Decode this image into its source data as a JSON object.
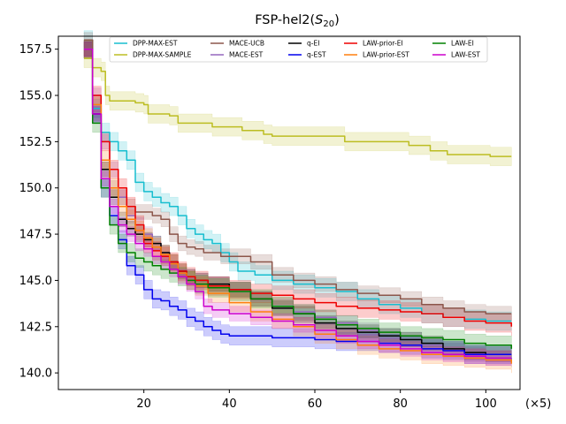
{
  "chart_data": {
    "type": "line",
    "title": "FSP-hel2(S20)",
    "title_main": "FSP-hel2(",
    "title_var": "S",
    "title_sub": "20",
    "title_close": ")",
    "xlabel": "",
    "ylabel": "",
    "x_unit_note": "(×5)",
    "xlim": [
      0,
      108
    ],
    "ylim": [
      139.1,
      158.2
    ],
    "xticks": [
      20,
      40,
      60,
      80,
      100
    ],
    "yticks": [
      140.0,
      142.5,
      145.0,
      147.5,
      150.0,
      152.5,
      155.0,
      157.5
    ],
    "xtick_labels": [
      "20",
      "40",
      "60",
      "80",
      "100"
    ],
    "ytick_labels": [
      "140.0",
      "142.5",
      "145.0",
      "147.5",
      "150.0",
      "152.5",
      "155.0",
      "157.5"
    ],
    "legend_position": "top-center",
    "series": [
      {
        "name": "DPP-MAX-EST",
        "color": "#17becf",
        "band": 0.5,
        "points": [
          [
            6,
            158.0
          ],
          [
            8,
            154.3
          ],
          [
            10,
            153.0
          ],
          [
            12,
            152.5
          ],
          [
            14,
            152.0
          ],
          [
            16,
            151.5
          ],
          [
            18,
            150.3
          ],
          [
            20,
            149.8
          ],
          [
            22,
            149.5
          ],
          [
            24,
            149.2
          ],
          [
            26,
            149.0
          ],
          [
            28,
            148.5
          ],
          [
            30,
            147.8
          ],
          [
            32,
            147.5
          ],
          [
            34,
            147.2
          ],
          [
            36,
            147.0
          ],
          [
            38,
            146.5
          ],
          [
            40,
            146.0
          ],
          [
            42,
            145.5
          ],
          [
            44,
            145.5
          ],
          [
            46,
            145.3
          ],
          [
            48,
            145.3
          ],
          [
            50,
            145.0
          ],
          [
            55,
            144.8
          ],
          [
            60,
            144.6
          ],
          [
            65,
            144.4
          ],
          [
            70,
            144.0
          ],
          [
            75,
            143.7
          ],
          [
            80,
            143.5
          ],
          [
            85,
            143.2
          ],
          [
            90,
            143.0
          ],
          [
            95,
            142.9
          ],
          [
            100,
            142.8
          ],
          [
            106,
            142.8
          ]
        ]
      },
      {
        "name": "DPP-MAX-SAMPLE",
        "color": "#bcbd22",
        "band": 0.5,
        "points": [
          [
            6,
            157.0
          ],
          [
            8,
            156.5
          ],
          [
            10,
            156.3
          ],
          [
            11,
            155.0
          ],
          [
            12,
            154.7
          ],
          [
            18,
            154.6
          ],
          [
            20,
            154.5
          ],
          [
            21,
            154.0
          ],
          [
            26,
            153.9
          ],
          [
            28,
            153.5
          ],
          [
            35,
            153.5
          ],
          [
            36,
            153.3
          ],
          [
            42,
            153.3
          ],
          [
            43,
            153.1
          ],
          [
            46,
            153.1
          ],
          [
            48,
            152.9
          ],
          [
            50,
            152.8
          ],
          [
            65,
            152.8
          ],
          [
            67,
            152.5
          ],
          [
            80,
            152.5
          ],
          [
            82,
            152.3
          ],
          [
            86,
            152.3
          ],
          [
            87,
            152.0
          ],
          [
            90,
            152.0
          ],
          [
            91,
            151.8
          ],
          [
            100,
            151.8
          ],
          [
            101,
            151.7
          ],
          [
            106,
            151.7
          ]
        ]
      },
      {
        "name": "MACE-UCB",
        "color": "#8c564b",
        "band": 0.4,
        "points": [
          [
            6,
            158.0
          ],
          [
            8,
            154.5
          ],
          [
            10,
            151.0
          ],
          [
            12,
            150.0
          ],
          [
            14,
            149.5
          ],
          [
            16,
            149.0
          ],
          [
            18,
            148.7
          ],
          [
            20,
            148.7
          ],
          [
            22,
            148.5
          ],
          [
            24,
            148.3
          ],
          [
            26,
            147.5
          ],
          [
            28,
            147.0
          ],
          [
            30,
            146.8
          ],
          [
            32,
            146.7
          ],
          [
            34,
            146.5
          ],
          [
            36,
            146.5
          ],
          [
            38,
            146.3
          ],
          [
            40,
            146.3
          ],
          [
            45,
            146.0
          ],
          [
            50,
            145.3
          ],
          [
            55,
            145.0
          ],
          [
            60,
            144.8
          ],
          [
            65,
            144.5
          ],
          [
            70,
            144.3
          ],
          [
            75,
            144.2
          ],
          [
            80,
            144.0
          ],
          [
            85,
            143.7
          ],
          [
            90,
            143.5
          ],
          [
            95,
            143.3
          ],
          [
            100,
            143.2
          ],
          [
            106,
            143.2
          ]
        ]
      },
      {
        "name": "MACE-EST",
        "color": "#9467bd",
        "band": 0.4,
        "points": [
          [
            6,
            157.5
          ],
          [
            8,
            155.0
          ],
          [
            10,
            152.5
          ],
          [
            12,
            151.0
          ],
          [
            14,
            149.5
          ],
          [
            16,
            148.5
          ],
          [
            18,
            148.0
          ],
          [
            20,
            147.5
          ],
          [
            22,
            147.0
          ],
          [
            24,
            146.5
          ],
          [
            26,
            146.0
          ],
          [
            28,
            145.5
          ],
          [
            30,
            145.2
          ],
          [
            32,
            145.0
          ],
          [
            35,
            144.8
          ],
          [
            40,
            144.5
          ],
          [
            45,
            144.0
          ],
          [
            50,
            143.6
          ],
          [
            55,
            143.3
          ],
          [
            60,
            143.0
          ],
          [
            65,
            142.7
          ],
          [
            70,
            142.3
          ],
          [
            75,
            142.0
          ],
          [
            80,
            141.8
          ],
          [
            85,
            141.5
          ],
          [
            90,
            141.2
          ],
          [
            95,
            141.0
          ],
          [
            100,
            140.8
          ],
          [
            106,
            140.7
          ]
        ]
      },
      {
        "name": "q-EI",
        "color": "#000000",
        "band": 0.4,
        "points": [
          [
            6,
            157.5
          ],
          [
            8,
            154.0
          ],
          [
            10,
            151.0
          ],
          [
            12,
            149.5
          ],
          [
            14,
            148.3
          ],
          [
            16,
            147.8
          ],
          [
            18,
            147.5
          ],
          [
            20,
            147.2
          ],
          [
            22,
            147.0
          ],
          [
            24,
            146.5
          ],
          [
            26,
            146.0
          ],
          [
            28,
            145.5
          ],
          [
            30,
            145.2
          ],
          [
            32,
            145.0
          ],
          [
            35,
            144.8
          ],
          [
            40,
            144.5
          ],
          [
            45,
            144.0
          ],
          [
            50,
            143.5
          ],
          [
            55,
            143.2
          ],
          [
            60,
            142.7
          ],
          [
            65,
            142.4
          ],
          [
            70,
            142.2
          ],
          [
            75,
            142.0
          ],
          [
            80,
            141.8
          ],
          [
            85,
            141.6
          ],
          [
            90,
            141.3
          ],
          [
            95,
            141.1
          ],
          [
            100,
            141.0
          ],
          [
            106,
            141.0
          ]
        ]
      },
      {
        "name": "q-EST",
        "color": "#0000ee",
        "band": 0.5,
        "points": [
          [
            6,
            157.5
          ],
          [
            8,
            154.0
          ],
          [
            10,
            150.0
          ],
          [
            12,
            148.5
          ],
          [
            14,
            147.2
          ],
          [
            16,
            145.8
          ],
          [
            18,
            145.3
          ],
          [
            20,
            144.5
          ],
          [
            22,
            144.0
          ],
          [
            24,
            143.9
          ],
          [
            26,
            143.6
          ],
          [
            28,
            143.4
          ],
          [
            30,
            143.0
          ],
          [
            32,
            142.8
          ],
          [
            34,
            142.5
          ],
          [
            36,
            142.3
          ],
          [
            38,
            142.1
          ],
          [
            40,
            142.0
          ],
          [
            45,
            142.0
          ],
          [
            50,
            141.9
          ],
          [
            55,
            141.9
          ],
          [
            60,
            141.8
          ],
          [
            65,
            141.7
          ],
          [
            70,
            141.7
          ],
          [
            75,
            141.6
          ],
          [
            80,
            141.5
          ],
          [
            85,
            141.3
          ],
          [
            90,
            141.2
          ],
          [
            95,
            141.0
          ],
          [
            100,
            141.0
          ],
          [
            106,
            141.0
          ]
        ]
      },
      {
        "name": "LAW-prior-EI",
        "color": "#ee0000",
        "band": 0.5,
        "points": [
          [
            6,
            157.5
          ],
          [
            8,
            155.0
          ],
          [
            10,
            152.5
          ],
          [
            12,
            151.0
          ],
          [
            14,
            150.0
          ],
          [
            16,
            149.0
          ],
          [
            18,
            148.0
          ],
          [
            20,
            147.0
          ],
          [
            22,
            146.6
          ],
          [
            24,
            146.3
          ],
          [
            26,
            146.0
          ],
          [
            28,
            145.5
          ],
          [
            30,
            145.2
          ],
          [
            32,
            145.0
          ],
          [
            35,
            144.7
          ],
          [
            40,
            144.5
          ],
          [
            45,
            144.3
          ],
          [
            50,
            144.2
          ],
          [
            55,
            144.0
          ],
          [
            60,
            143.8
          ],
          [
            65,
            143.6
          ],
          [
            70,
            143.5
          ],
          [
            75,
            143.4
          ],
          [
            80,
            143.3
          ],
          [
            85,
            143.2
          ],
          [
            90,
            143.0
          ],
          [
            95,
            142.8
          ],
          [
            100,
            142.7
          ],
          [
            106,
            142.5
          ]
        ]
      },
      {
        "name": "LAW-prior-EST",
        "color": "#ff7f0e",
        "band": 0.5,
        "points": [
          [
            6,
            157.5
          ],
          [
            8,
            154.5
          ],
          [
            10,
            151.5
          ],
          [
            12,
            150.0
          ],
          [
            14,
            149.0
          ],
          [
            16,
            148.3
          ],
          [
            18,
            147.7
          ],
          [
            20,
            147.3
          ],
          [
            22,
            146.8
          ],
          [
            24,
            146.4
          ],
          [
            26,
            145.9
          ],
          [
            28,
            145.4
          ],
          [
            30,
            145.0
          ],
          [
            32,
            144.7
          ],
          [
            35,
            144.3
          ],
          [
            40,
            143.8
          ],
          [
            45,
            143.3
          ],
          [
            50,
            142.9
          ],
          [
            55,
            142.5
          ],
          [
            60,
            142.1
          ],
          [
            65,
            141.8
          ],
          [
            70,
            141.5
          ],
          [
            75,
            141.3
          ],
          [
            80,
            141.2
          ],
          [
            85,
            141.0
          ],
          [
            90,
            140.9
          ],
          [
            95,
            140.8
          ],
          [
            100,
            140.7
          ],
          [
            106,
            140.5
          ]
        ]
      },
      {
        "name": "LAW-EI",
        "color": "#008000",
        "band": 0.5,
        "points": [
          [
            6,
            157.5
          ],
          [
            8,
            153.5
          ],
          [
            10,
            150.0
          ],
          [
            12,
            148.0
          ],
          [
            14,
            147.0
          ],
          [
            16,
            146.5
          ],
          [
            18,
            146.2
          ],
          [
            20,
            146.0
          ],
          [
            22,
            145.8
          ],
          [
            24,
            145.6
          ],
          [
            26,
            145.4
          ],
          [
            28,
            145.2
          ],
          [
            30,
            145.0
          ],
          [
            32,
            144.8
          ],
          [
            35,
            144.6
          ],
          [
            40,
            144.4
          ],
          [
            45,
            144.0
          ],
          [
            50,
            143.6
          ],
          [
            55,
            143.2
          ],
          [
            60,
            142.9
          ],
          [
            65,
            142.6
          ],
          [
            70,
            142.4
          ],
          [
            75,
            142.2
          ],
          [
            80,
            142.0
          ],
          [
            85,
            141.9
          ],
          [
            90,
            141.8
          ],
          [
            95,
            141.6
          ],
          [
            100,
            141.5
          ],
          [
            106,
            141.3
          ]
        ]
      },
      {
        "name": "LAW-EST",
        "color": "#cc00cc",
        "band": 0.4,
        "points": [
          [
            6,
            157.5
          ],
          [
            8,
            154.0
          ],
          [
            10,
            150.5
          ],
          [
            12,
            149.0
          ],
          [
            14,
            148.0
          ],
          [
            16,
            147.5
          ],
          [
            18,
            147.0
          ],
          [
            20,
            146.7
          ],
          [
            22,
            146.3
          ],
          [
            24,
            146.0
          ],
          [
            26,
            145.6
          ],
          [
            28,
            145.2
          ],
          [
            30,
            144.8
          ],
          [
            32,
            144.4
          ],
          [
            34,
            143.6
          ],
          [
            36,
            143.4
          ],
          [
            40,
            143.2
          ],
          [
            45,
            143.0
          ],
          [
            50,
            142.8
          ],
          [
            55,
            142.6
          ],
          [
            60,
            142.3
          ],
          [
            65,
            142.0
          ],
          [
            70,
            141.7
          ],
          [
            75,
            141.5
          ],
          [
            80,
            141.3
          ],
          [
            85,
            141.1
          ],
          [
            90,
            141.0
          ],
          [
            95,
            140.9
          ],
          [
            100,
            140.8
          ],
          [
            106,
            140.8
          ]
        ]
      }
    ]
  }
}
